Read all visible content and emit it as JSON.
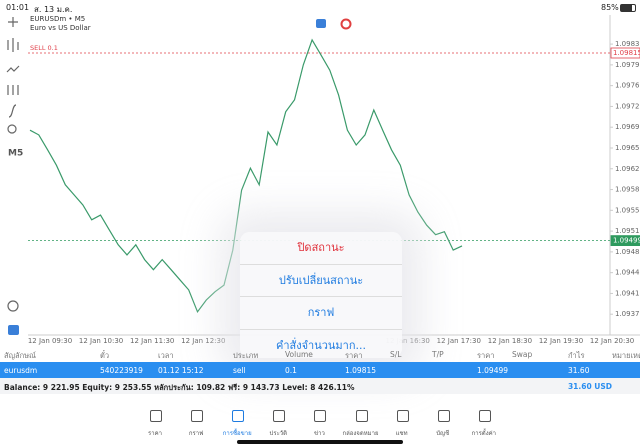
{
  "status_bar": {
    "time": "01:01",
    "date": "ส. 13 ม.ค.",
    "battery": "85%"
  },
  "chart_data": {
    "type": "line",
    "title": "EURUSDm • M5",
    "subtitle": "Euro vs US Dollar",
    "color": "#3a9a6a",
    "values": [
      1.09685,
      1.09677,
      1.09652,
      1.09626,
      1.09593,
      1.09576,
      1.09559,
      1.09534,
      1.09542,
      1.09517,
      1.09492,
      1.09475,
      1.09492,
      1.09467,
      1.0945,
      1.09467,
      1.0945,
      1.09433,
      1.09416,
      1.09379,
      1.09399,
      1.09413,
      1.09424,
      1.09483,
      1.09584,
      1.09621,
      1.09593,
      1.09682,
      1.0966,
      1.09716,
      1.09736,
      1.09795,
      1.09837,
      1.09812,
      1.09786,
      1.09744,
      1.09685,
      1.0966,
      1.09677,
      1.09719,
      1.09685,
      1.09652,
      1.09626,
      1.09576,
      1.09547,
      1.09525,
      1.09509,
      1.09514,
      1.09483,
      1.0949
    ],
    "ylim": [
      1.0934,
      1.09879
    ],
    "yticks": [
      {
        "value": 1.0983,
        "label": "1.09830"
      },
      {
        "value": 1.09795,
        "label": "1.09795"
      },
      {
        "value": 1.0976,
        "label": "1.09760"
      },
      {
        "value": 1.09725,
        "label": "1.09725"
      },
      {
        "value": 1.0969,
        "label": "1.09690"
      },
      {
        "value": 1.09655,
        "label": "1.09655"
      },
      {
        "value": 1.0962,
        "label": "1.09620"
      },
      {
        "value": 1.09585,
        "label": "1.09585"
      },
      {
        "value": 1.0955,
        "label": "1.09550"
      },
      {
        "value": 1.09515,
        "label": "1.09515"
      },
      {
        "value": 1.0948,
        "label": "1.09480"
      },
      {
        "value": 1.09445,
        "label": "1.09445"
      },
      {
        "value": 1.0941,
        "label": "1.09410"
      },
      {
        "value": 1.09375,
        "label": "1.09375"
      }
    ],
    "x_time_labels": [
      "12 Jan 09:30",
      "12 Jan 10:30",
      "12 Jan 11:30",
      "12 Jan 12:30",
      null,
      null,
      null,
      "12 Jan 16:30",
      "12 Jan 17:30",
      "12 Jan 18:30",
      "12 Jan 19:30",
      "12 Jan 20:30"
    ],
    "levels": [
      {
        "name": "SELL 0.1",
        "value": 1.09815,
        "label": "1.09815",
        "color": "#e0404a"
      },
      {
        "value": 1.09499,
        "label": "1.09499",
        "color": "#2e9a5e"
      }
    ],
    "timeframe": "M5"
  },
  "popup": {
    "items": [
      "ปิดสถานะ",
      "ปรับเปลี่ยนสถานะ",
      "กราฟ",
      "คำสั่งจำนวนมาก..."
    ]
  },
  "table": {
    "header": [
      "สัญลักษณ์",
      "ตั๋ว",
      "เวลา",
      "ประเภท",
      "Volume",
      "ราคา",
      "S/L",
      "T/P",
      "ราคา",
      "Swap",
      "กำไร",
      "หมายเหตุ"
    ],
    "row": [
      "eurusdm",
      "540223919",
      "01.12 15:12",
      "sell",
      "0.1",
      "1.09815",
      "",
      "",
      "1.09499",
      "",
      "31.60",
      ""
    ],
    "summary": "Balance: 9 221.95 Equity: 9 253.55 หลักประกัน: 109.82 ฟรี: 9 143.73 Level: 8 426.11%",
    "summary_profit": "31.60  USD"
  },
  "tabs": [
    "ราคา",
    "กราฟ",
    "การซื้อขาย",
    "ประวัติ",
    "ข่าว",
    "กล่องจดหมาย",
    "แชท",
    "บัญชี",
    "การตั้งค่า"
  ]
}
